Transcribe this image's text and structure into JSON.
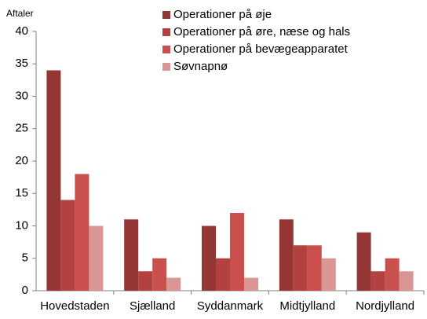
{
  "chart_data": {
    "type": "bar",
    "y_axis_label": "Aftaler",
    "categories": [
      "Hovedstaden",
      "Sjælland",
      "Syddanmark",
      "Midtjylland",
      "Nordjylland"
    ],
    "series": [
      {
        "name": "Operationer på øje",
        "color": "#943634",
        "values": [
          34,
          11,
          10,
          11,
          9
        ]
      },
      {
        "name": "Operationer på øre, næse og hals",
        "color": "#b3413f",
        "values": [
          14,
          3,
          5,
          7,
          3
        ]
      },
      {
        "name": "Operationer på bevægeapparatet",
        "color": "#c9504d",
        "values": [
          18,
          5,
          12,
          7,
          5
        ]
      },
      {
        "name": "Søvnapnø",
        "color": "#d99694",
        "values": [
          10,
          2,
          2,
          5,
          3
        ]
      }
    ],
    "ylim": [
      0,
      40
    ],
    "yticks": [
      0,
      5,
      10,
      15,
      20,
      25,
      30,
      35,
      40
    ],
    "grid": false,
    "legend": "top-right"
  }
}
